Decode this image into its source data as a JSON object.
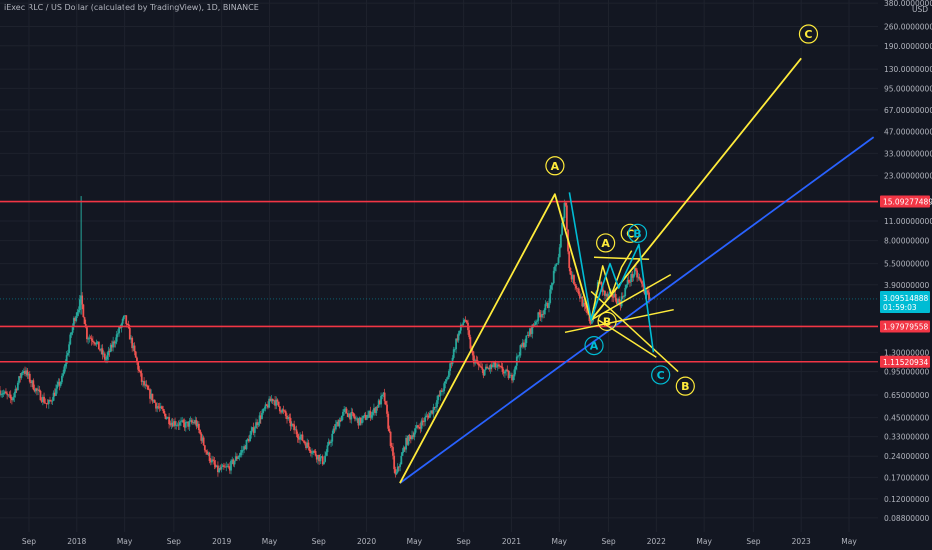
{
  "header": {
    "title": "iExec RLC / US Dollar (calculated by TradingView), 1D, BINANCE"
  },
  "colors": {
    "background": "#131722",
    "up": "#26a69a",
    "down": "#ef5350",
    "level_line": "#f23645",
    "trend_line": "#2962ff",
    "yellow_wave": "#ffeb3b",
    "blue_wave": "#00bcd4",
    "current_tag": "#00bcd4"
  },
  "chart_data": {
    "type": "candlestick",
    "title": "iExec RLC / US Dollar (calculated by TradingView), 1D, BINANCE",
    "y_scale": "log",
    "ylim": [
      0.07,
      400
    ],
    "y_unit": "USD",
    "y_ticks": [
      {
        "value": 380,
        "label": "380.00000000"
      },
      {
        "value": 260,
        "label": "260.00000000"
      },
      {
        "value": 190,
        "label": "190.00000000"
      },
      {
        "value": 130,
        "label": "130.00000000"
      },
      {
        "value": 95,
        "label": "95.00000000"
      },
      {
        "value": 67,
        "label": "67.00000000"
      },
      {
        "value": 47,
        "label": "47.00000000"
      },
      {
        "value": 33,
        "label": "33.00000000"
      },
      {
        "value": 23,
        "label": "23.00000000"
      },
      {
        "value": 11,
        "label": "11.00000000"
      },
      {
        "value": 8,
        "label": "8.00000000"
      },
      {
        "value": 5.5,
        "label": "5.50000000"
      },
      {
        "value": 3.9,
        "label": "3.90000000"
      },
      {
        "value": 1.3,
        "label": "1.30000000"
      },
      {
        "value": 0.95,
        "label": "0.95000000"
      },
      {
        "value": 0.65,
        "label": "0.65000000"
      },
      {
        "value": 0.45,
        "label": "0.45000000"
      },
      {
        "value": 0.33,
        "label": "0.33000000"
      },
      {
        "value": 0.24,
        "label": "0.24000000"
      },
      {
        "value": 0.17,
        "label": "0.17000000"
      },
      {
        "value": 0.12,
        "label": "0.12000000"
      },
      {
        "value": 0.088,
        "label": "0.08800000"
      }
    ],
    "x_ticks": [
      "Sep",
      "2018",
      "May",
      "Sep",
      "2019",
      "May",
      "Sep",
      "2020",
      "May",
      "Sep",
      "2021",
      "May",
      "Sep",
      "2022",
      "May",
      "Sep",
      "2023",
      "May"
    ],
    "x_tick_times": [
      2017.67,
      2018.0,
      2018.33,
      2018.67,
      2019.0,
      2019.33,
      2019.67,
      2020.0,
      2020.33,
      2020.67,
      2021.0,
      2021.33,
      2021.67,
      2022.0,
      2022.33,
      2022.67,
      2023.0,
      2023.33
    ],
    "xlim": [
      2017.47,
      2023.53
    ],
    "price_path": [
      [
        2017.47,
        0.7
      ],
      [
        2017.55,
        0.6
      ],
      [
        2017.63,
        1.0
      ],
      [
        2017.72,
        0.7
      ],
      [
        2017.8,
        0.55
      ],
      [
        2017.9,
        0.85
      ],
      [
        2017.98,
        2.2
      ],
      [
        2018.03,
        3.1
      ],
      [
        2018.07,
        1.7
      ],
      [
        2018.12,
        1.6
      ],
      [
        2018.2,
        1.15
      ],
      [
        2018.28,
        1.75
      ],
      [
        2018.33,
        2.3
      ],
      [
        2018.38,
        1.5
      ],
      [
        2018.45,
        0.8
      ],
      [
        2018.55,
        0.55
      ],
      [
        2018.65,
        0.42
      ],
      [
        2018.75,
        0.4
      ],
      [
        2018.82,
        0.42
      ],
      [
        2018.9,
        0.25
      ],
      [
        2018.97,
        0.19
      ],
      [
        2019.05,
        0.2
      ],
      [
        2019.15,
        0.27
      ],
      [
        2019.25,
        0.43
      ],
      [
        2019.35,
        0.62
      ],
      [
        2019.42,
        0.5
      ],
      [
        2019.5,
        0.37
      ],
      [
        2019.6,
        0.28
      ],
      [
        2019.7,
        0.22
      ],
      [
        2019.78,
        0.38
      ],
      [
        2019.85,
        0.5
      ],
      [
        2019.95,
        0.42
      ],
      [
        2020.05,
        0.5
      ],
      [
        2020.12,
        0.65
      ],
      [
        2020.2,
        0.17
      ],
      [
        2020.27,
        0.3
      ],
      [
        2020.35,
        0.38
      ],
      [
        2020.45,
        0.5
      ],
      [
        2020.55,
        0.8
      ],
      [
        2020.62,
        1.6
      ],
      [
        2020.68,
        2.3
      ],
      [
        2020.73,
        1.2
      ],
      [
        2020.8,
        0.95
      ],
      [
        2020.88,
        1.05
      ],
      [
        2020.95,
        0.95
      ],
      [
        2021.0,
        0.85
      ],
      [
        2021.05,
        1.3
      ],
      [
        2021.1,
        1.6
      ],
      [
        2021.18,
        2.3
      ],
      [
        2021.25,
        2.8
      ],
      [
        2021.29,
        4.5
      ],
      [
        2021.33,
        6.5
      ],
      [
        2021.37,
        16.5
      ],
      [
        2021.4,
        4.8
      ],
      [
        2021.45,
        3.8
      ],
      [
        2021.5,
        2.7
      ],
      [
        2021.55,
        2.1
      ],
      [
        2021.6,
        4.2
      ],
      [
        2021.65,
        3.2
      ],
      [
        2021.7,
        3.3
      ],
      [
        2021.75,
        2.9
      ],
      [
        2021.8,
        4.0
      ],
      [
        2021.85,
        4.8
      ],
      [
        2021.88,
        4.3
      ],
      [
        2021.92,
        3.5
      ],
      [
        2021.96,
        3.1
      ]
    ],
    "horizontal_levels": [
      {
        "value": 15.09277489,
        "label": "15.09277489"
      },
      {
        "value": 1.97979558,
        "label": "1.97979558"
      },
      {
        "value": 1.11520934,
        "label": "1.11520934"
      }
    ],
    "current_price": {
      "value": 3.09514888,
      "label": "3.09514888",
      "countdown": "01:59:03"
    },
    "trend_line": {
      "points": [
        [
          2020.23,
          0.155
        ],
        [
          2023.5,
          43
        ]
      ]
    },
    "yellow_wave": {
      "points": [
        [
          2020.23,
          0.155
        ],
        [
          2021.3,
          17.0
        ],
        [
          2021.55,
          2.2
        ],
        [
          2023.0,
          155
        ]
      ],
      "labels": [
        {
          "text": "A",
          "x": 2021.3,
          "y": 27
        },
        {
          "text": "B",
          "x": 2022.2,
          "y": 0.75
        },
        {
          "text": "C",
          "x": 2023.05,
          "y": 230
        }
      ]
    },
    "yellow_lines_secondary": [
      {
        "points": [
          [
            2021.55,
            2.2
          ],
          [
            2021.63,
            5.3
          ],
          [
            2021.69,
            3.3
          ],
          [
            2021.76,
            5.2
          ],
          [
            2021.83,
            6.8
          ]
        ]
      },
      {
        "points": [
          [
            2021.57,
            6.1
          ],
          [
            2021.95,
            5.9
          ]
        ]
      },
      {
        "points": [
          [
            2021.55,
            2.2
          ],
          [
            2022.1,
            4.6
          ]
        ]
      },
      {
        "points": [
          [
            2021.37,
            1.8
          ],
          [
            2022.12,
            2.6
          ]
        ]
      },
      {
        "points": [
          [
            2021.6,
            2.2
          ],
          [
            2022.0,
            1.2
          ]
        ]
      },
      {
        "points": [
          [
            2021.55,
            3.5
          ],
          [
            2022.15,
            0.95
          ]
        ]
      }
    ],
    "yellow_labels_secondary": [
      {
        "text": "A",
        "x": 2021.65,
        "y": 7.7
      },
      {
        "text": "B",
        "x": 2021.66,
        "y": 2.15
      },
      {
        "text": "C",
        "x": 2021.82,
        "y": 9.0
      }
    ],
    "blue_wave": {
      "points": [
        [
          2021.4,
          17.5
        ],
        [
          2021.55,
          2.2
        ],
        [
          2021.68,
          5.5
        ],
        [
          2021.74,
          3.7
        ],
        [
          2021.88,
          7.5
        ],
        [
          2021.98,
          1.3
        ]
      ],
      "labels": [
        {
          "text": "A",
          "x": 2021.57,
          "y": 1.45
        },
        {
          "text": "B",
          "x": 2021.87,
          "y": 9.0
        },
        {
          "text": "C",
          "x": 2022.03,
          "y": 0.9
        }
      ]
    }
  }
}
